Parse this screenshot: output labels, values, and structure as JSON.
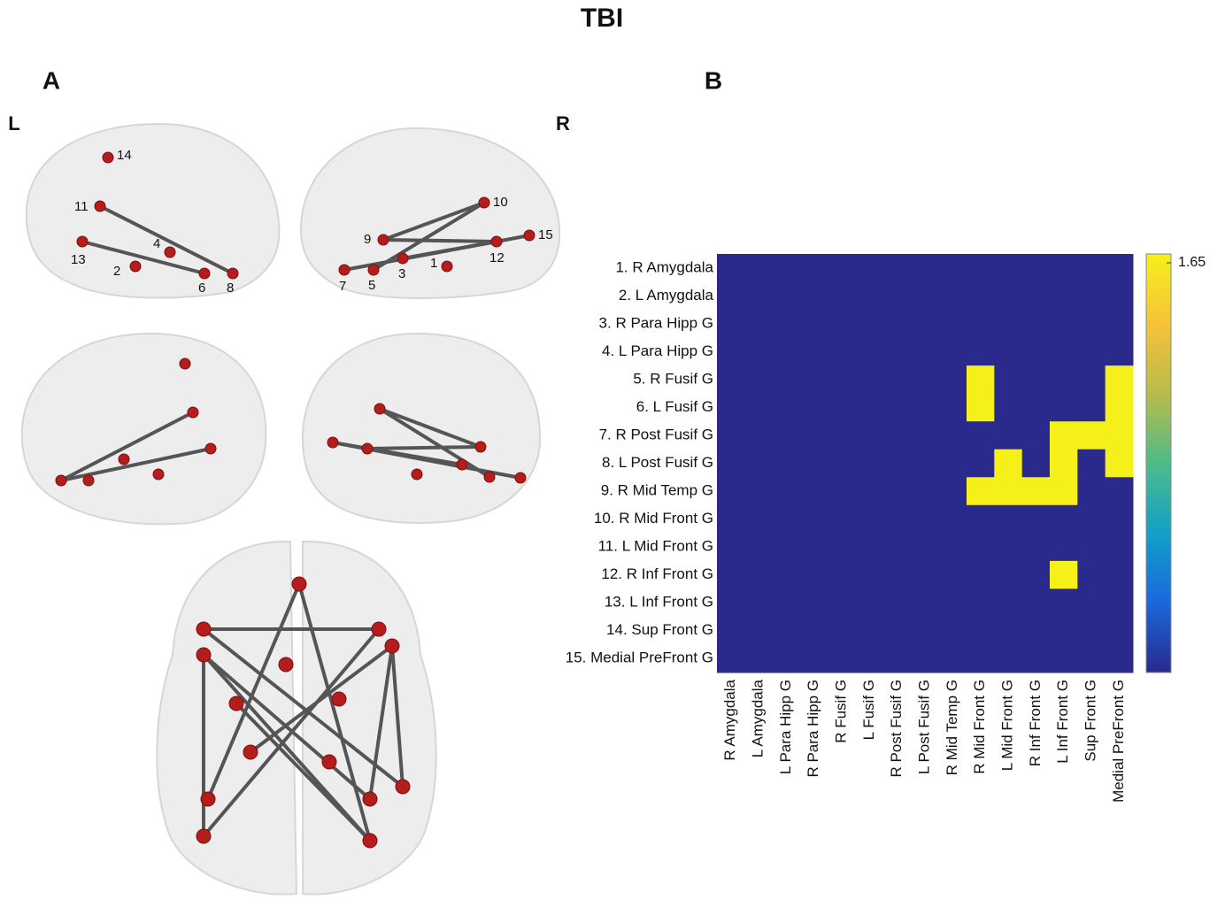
{
  "title": "TBI",
  "panels": {
    "a": "A",
    "b": "B"
  },
  "hemisphere_labels": {
    "left": "L",
    "right": "R"
  },
  "brain_nodes": {
    "left_lateral": [
      "14",
      "11",
      "4",
      "13",
      "2",
      "6",
      "8"
    ],
    "right_lateral": [
      "10",
      "9",
      "15",
      "12",
      "1",
      "7",
      "5",
      "3"
    ]
  },
  "chart_data": {
    "type": "heatmap",
    "rows": [
      "1. R Amygdala",
      "2. L Amygdala",
      "3. R Para Hipp G",
      "4. L Para Hipp G",
      "5. R Fusif G",
      "6. L Fusif G",
      "7. R Post Fusif G",
      "8. L Post Fusif G",
      "9. R Mid Temp  G",
      "10. R Mid Front G",
      "11. L Mid Front G",
      "12. R Inf Front G",
      "13. L Inf Front G",
      "14. Sup Front G",
      "15. Medial PreFront G"
    ],
    "columns": [
      "R Amygdala",
      "L Amygdala",
      "L Para Hipp G",
      "R Para Hipp G",
      "R Fusif G",
      "L Fusif G",
      "R Post Fusif G",
      "L Post Fusif G",
      "R Mid Temp G",
      "R Mid Front G",
      "L Mid Front G",
      "R Inf Front G",
      "L Inf Front G",
      "Sup Front G",
      "Medial PreFront G"
    ],
    "values": [
      [
        0,
        0,
        0,
        0,
        0,
        0,
        0,
        0,
        0,
        0,
        0,
        0,
        0,
        0,
        0
      ],
      [
        0,
        0,
        0,
        0,
        0,
        0,
        0,
        0,
        0,
        0,
        0,
        0,
        0,
        0,
        0
      ],
      [
        0,
        0,
        0,
        0,
        0,
        0,
        0,
        0,
        0,
        0,
        0,
        0,
        0,
        0,
        0
      ],
      [
        0,
        0,
        0,
        0,
        0,
        0,
        0,
        0,
        0,
        0,
        0,
        0,
        0,
        0,
        0
      ],
      [
        0,
        0,
        0,
        0,
        0,
        0,
        0,
        0,
        0,
        1.65,
        0,
        0,
        0,
        0,
        1.65
      ],
      [
        0,
        0,
        0,
        0,
        0,
        0,
        0,
        0,
        0,
        1.65,
        0,
        0,
        0,
        0,
        1.65
      ],
      [
        0,
        0,
        0,
        0,
        0,
        0,
        0,
        0,
        0,
        0,
        0,
        0,
        1.65,
        1.65,
        1.65
      ],
      [
        0,
        0,
        0,
        0,
        0,
        0,
        0,
        0,
        0,
        0,
        1.65,
        0,
        1.65,
        0,
        1.65
      ],
      [
        0,
        0,
        0,
        0,
        0,
        0,
        0,
        0,
        0,
        1.65,
        1.65,
        1.65,
        1.65,
        0,
        0
      ],
      [
        0,
        0,
        0,
        0,
        0,
        0,
        0,
        0,
        0,
        0,
        0,
        0,
        0,
        0,
        0
      ],
      [
        0,
        0,
        0,
        0,
        0,
        0,
        0,
        0,
        0,
        0,
        0,
        0,
        0,
        0,
        0
      ],
      [
        0,
        0,
        0,
        0,
        0,
        0,
        0,
        0,
        0,
        0,
        0,
        0,
        1.65,
        0,
        0
      ],
      [
        0,
        0,
        0,
        0,
        0,
        0,
        0,
        0,
        0,
        0,
        0,
        0,
        0,
        0,
        0
      ],
      [
        0,
        0,
        0,
        0,
        0,
        0,
        0,
        0,
        0,
        0,
        0,
        0,
        0,
        0,
        0
      ],
      [
        0,
        0,
        0,
        0,
        0,
        0,
        0,
        0,
        0,
        0,
        0,
        0,
        0,
        0,
        0
      ]
    ],
    "zlim": [
      0,
      1.65
    ],
    "zticks": [
      1.65
    ],
    "colormap": [
      "#2a2a8c",
      "#1a68dc",
      "#13a0c8",
      "#4dbb8a",
      "#b8bc4a",
      "#f6c23a",
      "#f5f01a"
    ]
  }
}
